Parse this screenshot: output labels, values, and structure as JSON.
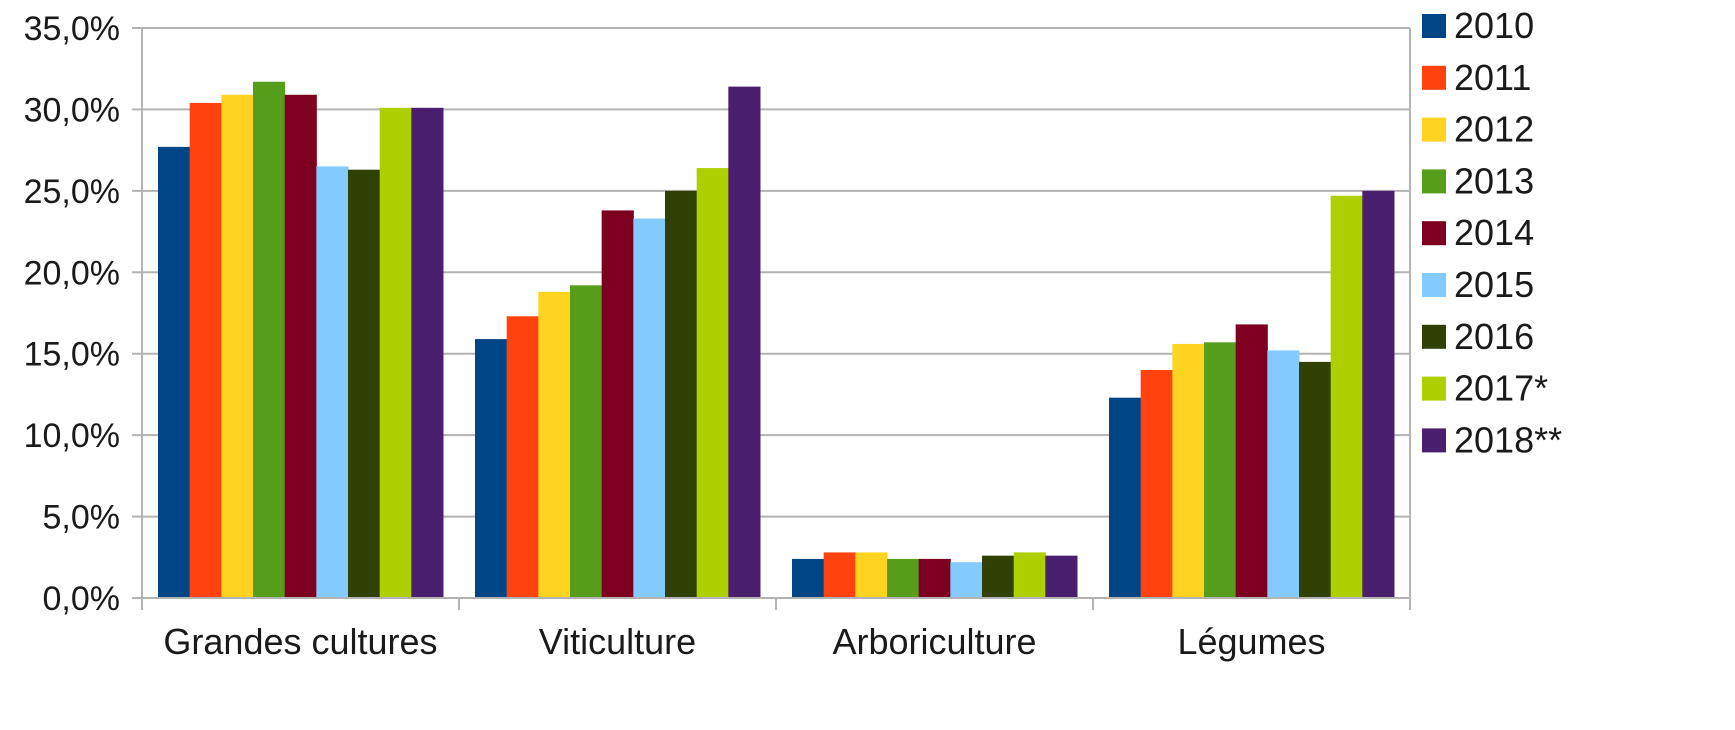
{
  "chart_data": {
    "type": "bar",
    "title": "",
    "xlabel": "",
    "ylabel": "",
    "ylim": [
      0,
      35
    ],
    "y_ticks": [
      "0,0%",
      "5,0%",
      "10,0%",
      "15,0%",
      "20,0%",
      "25,0%",
      "30,0%",
      "35,0%"
    ],
    "grid": true,
    "legend_position": "right",
    "categories": [
      "Grandes cultures",
      "Viticulture",
      "Arboriculture",
      "Légumes"
    ],
    "series": [
      {
        "name": "2010",
        "color": "#004586",
        "values": [
          27.7,
          15.9,
          2.4,
          12.3
        ]
      },
      {
        "name": "2011",
        "color": "#ff420e",
        "values": [
          30.4,
          17.3,
          2.8,
          14.0
        ]
      },
      {
        "name": "2012",
        "color": "#ffd320",
        "values": [
          30.9,
          18.8,
          2.8,
          15.6
        ]
      },
      {
        "name": "2013",
        "color": "#579d1c",
        "values": [
          31.7,
          19.2,
          2.4,
          15.7
        ]
      },
      {
        "name": "2014",
        "color": "#7e0021",
        "values": [
          30.9,
          23.8,
          2.4,
          16.8
        ]
      },
      {
        "name": "2015",
        "color": "#83caff",
        "values": [
          26.5,
          23.3,
          2.2,
          15.2
        ]
      },
      {
        "name": "2016",
        "color": "#314004",
        "values": [
          26.3,
          25.0,
          2.6,
          14.5
        ]
      },
      {
        "name": "2017*",
        "color": "#aecf00",
        "values": [
          30.1,
          26.4,
          2.8,
          24.7
        ]
      },
      {
        "name": "2018**",
        "color": "#4b1f6f",
        "values": [
          30.1,
          31.4,
          2.6,
          25.0
        ]
      }
    ]
  }
}
